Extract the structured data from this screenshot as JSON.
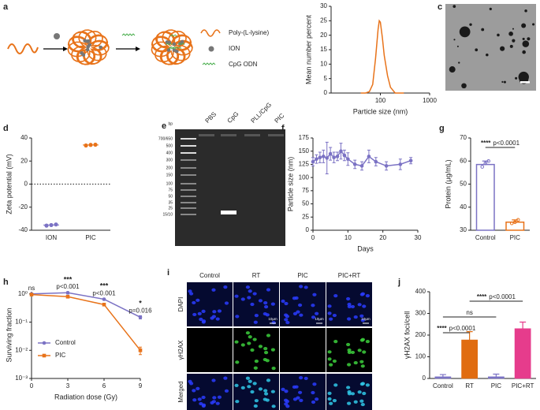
{
  "schematic": {
    "label": "a",
    "legend": [
      "Poly-(L-lysine)",
      "ION",
      "CpG ODN"
    ]
  },
  "tem": {
    "label": "c"
  },
  "gel": {
    "label": "e",
    "lanes": [
      "PBS",
      "CpG",
      "PLL/CpG",
      "PIC"
    ],
    "ladder": [
      "bp",
      "700/650",
      "500",
      "400",
      "300",
      "200",
      "150",
      "100",
      "75",
      "50",
      "35",
      "25",
      "15/10"
    ]
  },
  "microscopy": {
    "label": "i",
    "columns": [
      "Control",
      "RT",
      "PIC",
      "PIC+RT"
    ],
    "rows": [
      "DAPI",
      "γH2AX",
      "Merged"
    ],
    "scale_bar": "10μm"
  },
  "chart_data": [
    {
      "type": "line",
      "label": "b",
      "xlabel": "Particle size (nm)",
      "ylabel": "Mean number percent",
      "xlog": true,
      "xlim": [
        10,
        1000
      ],
      "xticks": [
        100,
        1000
      ],
      "ylim": [
        0,
        30
      ],
      "yticks": [
        0,
        5,
        10,
        15,
        20,
        25,
        30
      ],
      "x": [
        40,
        50,
        60,
        70,
        80,
        90,
        95,
        100,
        110,
        120,
        140,
        160,
        200,
        300
      ],
      "series": [
        {
          "color": "#e8731a",
          "values": [
            0,
            0,
            0.5,
            3,
            12,
            22,
            25,
            24.5,
            19,
            13,
            6,
            2,
            0,
            0
          ]
        }
      ]
    },
    {
      "type": "dot",
      "label": "d",
      "ylabel": "Zeta potential (mV)",
      "categories": [
        "ION",
        "PIC"
      ],
      "ylim": [
        -40,
        40
      ],
      "yticks": [
        -40,
        -20,
        0,
        20,
        40
      ],
      "hline": 0,
      "colors": [
        "#7b72c4",
        "#e8731a"
      ],
      "points": [
        [
          -36,
          -35.5,
          -35
        ],
        [
          33.5,
          34,
          34.2
        ]
      ],
      "means": [
        -35.5,
        33.9
      ]
    },
    {
      "type": "line",
      "label": "f",
      "xlabel": "Days",
      "ylabel": "Particle size (nm)",
      "xlim": [
        0,
        30
      ],
      "xticks": [
        0,
        10,
        20,
        30
      ],
      "ylim": [
        0,
        175
      ],
      "yticks": [
        0,
        25,
        50,
        75,
        100,
        125,
        150,
        175
      ],
      "x": [
        0,
        1,
        2,
        3,
        4,
        5,
        6,
        7,
        8,
        9,
        10,
        12,
        14,
        16,
        18,
        21,
        25,
        28
      ],
      "series": [
        {
          "color": "#7b72c4",
          "marker": "circle",
          "values": [
            130,
            135,
            138,
            140,
            137,
            145,
            138,
            140,
            150,
            142,
            135,
            125,
            122,
            140,
            130,
            122,
            125,
            132
          ],
          "errors": [
            8,
            8,
            10,
            12,
            30,
            12,
            10,
            8,
            15,
            10,
            12,
            8,
            8,
            12,
            8,
            8,
            10,
            6
          ]
        }
      ]
    },
    {
      "type": "bar",
      "label": "g",
      "ylabel": "Protein (μg/mL)",
      "categories": [
        "Control",
        "PIC"
      ],
      "hollow": true,
      "ylim": [
        30,
        70
      ],
      "yticks": [
        30,
        40,
        50,
        60,
        70
      ],
      "colors": [
        "#7b72c4",
        "#e8731a"
      ],
      "values": [
        58.5,
        33.5
      ],
      "errors": [
        1.5,
        1
      ],
      "points": [
        [
          57.5,
          59,
          60
        ],
        [
          33,
          33.5,
          34.5
        ]
      ],
      "brackets": [
        {
          "between": [
            "Control",
            "PIC"
          ],
          "texts": [
            "****",
            "p<0.0001"
          ]
        }
      ]
    },
    {
      "type": "line",
      "label": "h",
      "xlabel": "Radiation dose (Gy)",
      "ylabel": "Surviving fraction",
      "ylog": true,
      "xlim": [
        0,
        9
      ],
      "xticks": [
        0,
        3,
        6,
        9
      ],
      "ylim": [
        0.001,
        1.2
      ],
      "yticks": [
        {
          "value": 0.001,
          "label": "10⁻³"
        },
        {
          "value": 0.01,
          "label": "10⁻²"
        },
        {
          "value": 0.1,
          "label": "10⁻¹"
        },
        {
          "value": 1,
          "label": "10⁰"
        }
      ],
      "x": [
        0,
        3,
        6,
        9
      ],
      "legend": "lower left",
      "annotations": [
        [
          "ns"
        ],
        [
          "***",
          "p<0.001"
        ],
        [
          "***",
          "p<0.001"
        ],
        [
          "*",
          "p=0.016"
        ]
      ],
      "series": [
        {
          "name": "Control",
          "color": "#7b72c4",
          "marker": "circle",
          "values": [
            1,
            1.1,
            0.65,
            0.15
          ],
          "errors": [
            0.05,
            0.1,
            0.05,
            0.02
          ]
        },
        {
          "name": "PIC",
          "color": "#e8731a",
          "marker": "square",
          "values": [
            0.95,
            0.8,
            0.42,
            0.01
          ],
          "errors": [
            0.05,
            0.05,
            0.04,
            0.003
          ]
        }
      ]
    },
    {
      "type": "bar",
      "label": "j",
      "ylabel": "γH2AX foci/cell",
      "categories": [
        "Control",
        "RT",
        "PIC",
        "PIC+RT"
      ],
      "ylim": [
        0,
        400
      ],
      "yticks": [
        0,
        100,
        200,
        300,
        400
      ],
      "colors": [
        "#7b72c4",
        "#e06c10",
        "#7b72c4",
        "#e63c8c"
      ],
      "values": [
        8,
        178,
        8,
        230
      ],
      "errors": [
        10,
        38,
        12,
        30
      ],
      "brackets": [
        {
          "between": [
            "Control",
            "RT"
          ],
          "texts": [
            "****",
            "p<0.0001"
          ]
        },
        {
          "between": [
            "Control",
            "PIC"
          ],
          "texts": [
            "ns"
          ]
        },
        {
          "between": [
            "RT",
            "PIC+RT"
          ],
          "texts": [
            "****",
            "p<0.0001"
          ]
        }
      ]
    }
  ]
}
